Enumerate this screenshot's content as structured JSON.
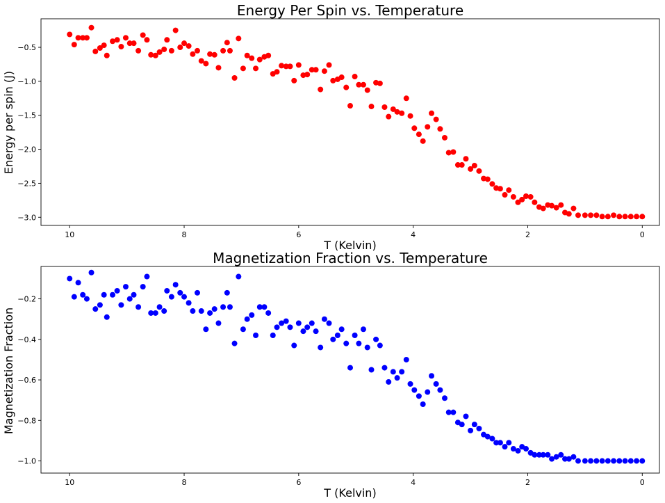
{
  "chart_data": [
    {
      "type": "scatter",
      "title": "Energy Per Spin vs. Temperature",
      "xlabel": "T (Kelvin)",
      "ylabel": "Energy per spin (J)",
      "xlim": [
        10.5,
        -0.3
      ],
      "ylim": [
        -3.12,
        -0.08
      ],
      "xticks": [
        10,
        8,
        6,
        4,
        2,
        0
      ],
      "yticks": [
        -0.5,
        -1.0,
        -1.5,
        -2.0,
        -2.5,
        -3.0
      ],
      "ytick_labels": [
        "−0.5",
        "−1.0",
        "−1.5",
        "−2.0",
        "−2.5",
        "−3.0"
      ],
      "grid": false,
      "color": "#ff0000",
      "series": [
        {
          "points": [
            [
              10.0,
              -0.31
            ],
            [
              9.92,
              -0.46
            ],
            [
              9.85,
              -0.36
            ],
            [
              9.77,
              -0.36
            ],
            [
              9.7,
              -0.36
            ],
            [
              9.62,
              -0.21
            ],
            [
              9.55,
              -0.56
            ],
            [
              9.47,
              -0.51
            ],
            [
              9.4,
              -0.47
            ],
            [
              9.35,
              -0.62
            ],
            [
              9.25,
              -0.41
            ],
            [
              9.17,
              -0.39
            ],
            [
              9.1,
              -0.49
            ],
            [
              9.02,
              -0.36
            ],
            [
              8.95,
              -0.44
            ],
            [
              8.88,
              -0.44
            ],
            [
              8.8,
              -0.55
            ],
            [
              8.72,
              -0.32
            ],
            [
              8.65,
              -0.39
            ],
            [
              8.58,
              -0.61
            ],
            [
              8.5,
              -0.62
            ],
            [
              8.43,
              -0.57
            ],
            [
              8.35,
              -0.53
            ],
            [
              8.3,
              -0.39
            ],
            [
              8.22,
              -0.55
            ],
            [
              8.15,
              -0.25
            ],
            [
              8.07,
              -0.5
            ],
            [
              8.0,
              -0.44
            ],
            [
              7.92,
              -0.48
            ],
            [
              7.85,
              -0.6
            ],
            [
              7.77,
              -0.55
            ],
            [
              7.7,
              -0.7
            ],
            [
              7.62,
              -0.74
            ],
            [
              7.55,
              -0.6
            ],
            [
              7.47,
              -0.61
            ],
            [
              7.4,
              -0.8
            ],
            [
              7.32,
              -0.55
            ],
            [
              7.25,
              -0.43
            ],
            [
              7.2,
              -0.55
            ],
            [
              7.12,
              -0.95
            ],
            [
              7.05,
              -0.37
            ],
            [
              6.97,
              -0.81
            ],
            [
              6.9,
              -0.62
            ],
            [
              6.82,
              -0.66
            ],
            [
              6.75,
              -0.81
            ],
            [
              6.68,
              -0.68
            ],
            [
              6.6,
              -0.64
            ],
            [
              6.53,
              -0.62
            ],
            [
              6.45,
              -0.89
            ],
            [
              6.38,
              -0.86
            ],
            [
              6.3,
              -0.77
            ],
            [
              6.22,
              -0.78
            ],
            [
              6.15,
              -0.78
            ],
            [
              6.08,
              -0.99
            ],
            [
              6.0,
              -0.76
            ],
            [
              5.92,
              -0.91
            ],
            [
              5.85,
              -0.9
            ],
            [
              5.77,
              -0.83
            ],
            [
              5.7,
              -0.83
            ],
            [
              5.62,
              -1.12
            ],
            [
              5.55,
              -0.85
            ],
            [
              5.47,
              -0.76
            ],
            [
              5.4,
              -0.99
            ],
            [
              5.32,
              -0.97
            ],
            [
              5.25,
              -0.94
            ],
            [
              5.17,
              -1.09
            ],
            [
              5.1,
              -1.36
            ],
            [
              5.02,
              -0.93
            ],
            [
              4.95,
              -1.05
            ],
            [
              4.87,
              -1.05
            ],
            [
              4.8,
              -1.13
            ],
            [
              4.73,
              -1.37
            ],
            [
              4.65,
              -1.02
            ],
            [
              4.58,
              -1.03
            ],
            [
              4.5,
              -1.38
            ],
            [
              4.43,
              -1.52
            ],
            [
              4.35,
              -1.41
            ],
            [
              4.28,
              -1.45
            ],
            [
              4.2,
              -1.47
            ],
            [
              4.12,
              -1.25
            ],
            [
              4.05,
              -1.51
            ],
            [
              3.98,
              -1.69
            ],
            [
              3.9,
              -1.78
            ],
            [
              3.83,
              -1.88
            ],
            [
              3.75,
              -1.67
            ],
            [
              3.68,
              -1.47
            ],
            [
              3.6,
              -1.56
            ],
            [
              3.53,
              -1.7
            ],
            [
              3.45,
              -1.83
            ],
            [
              3.38,
              -2.05
            ],
            [
              3.3,
              -2.04
            ],
            [
              3.22,
              -2.23
            ],
            [
              3.15,
              -2.23
            ],
            [
              3.08,
              -2.14
            ],
            [
              3.0,
              -2.29
            ],
            [
              2.93,
              -2.24
            ],
            [
              2.85,
              -2.32
            ],
            [
              2.77,
              -2.43
            ],
            [
              2.7,
              -2.44
            ],
            [
              2.62,
              -2.51
            ],
            [
              2.55,
              -2.57
            ],
            [
              2.48,
              -2.58
            ],
            [
              2.4,
              -2.67
            ],
            [
              2.33,
              -2.6
            ],
            [
              2.25,
              -2.7
            ],
            [
              2.17,
              -2.78
            ],
            [
              2.1,
              -2.74
            ],
            [
              2.03,
              -2.69
            ],
            [
              1.95,
              -2.7
            ],
            [
              1.88,
              -2.78
            ],
            [
              1.8,
              -2.85
            ],
            [
              1.73,
              -2.87
            ],
            [
              1.65,
              -2.82
            ],
            [
              1.58,
              -2.83
            ],
            [
              1.5,
              -2.86
            ],
            [
              1.42,
              -2.82
            ],
            [
              1.35,
              -2.93
            ],
            [
              1.28,
              -2.95
            ],
            [
              1.2,
              -2.87
            ],
            [
              1.12,
              -2.97
            ],
            [
              1.0,
              -2.97
            ],
            [
              0.9,
              -2.97
            ],
            [
              0.8,
              -2.97
            ],
            [
              0.7,
              -2.99
            ],
            [
              0.6,
              -2.99
            ],
            [
              0.5,
              -2.97
            ],
            [
              0.4,
              -2.99
            ],
            [
              0.3,
              -2.99
            ],
            [
              0.2,
              -2.99
            ],
            [
              0.1,
              -2.99
            ],
            [
              0.0,
              -2.99
            ]
          ]
        }
      ]
    },
    {
      "type": "scatter",
      "title": "Magnetization Fraction vs. Temperature",
      "xlabel": "T (Kelvin)",
      "ylabel": "Magnetization Fraction",
      "xlim": [
        10.5,
        -0.3
      ],
      "ylim": [
        -1.06,
        -0.04
      ],
      "xticks": [
        10,
        8,
        6,
        4,
        2,
        0
      ],
      "yticks": [
        -0.2,
        -0.4,
        -0.6,
        -0.8,
        -1.0
      ],
      "ytick_labels": [
        "−0.2",
        "−0.4",
        "−0.6",
        "−0.8",
        "−1.0"
      ],
      "grid": false,
      "color": "#0000ff",
      "series": [
        {
          "points": [
            [
              10.0,
              -0.1
            ],
            [
              9.92,
              -0.19
            ],
            [
              9.85,
              -0.12
            ],
            [
              9.77,
              -0.18
            ],
            [
              9.7,
              -0.2
            ],
            [
              9.62,
              -0.07
            ],
            [
              9.55,
              -0.25
            ],
            [
              9.47,
              -0.23
            ],
            [
              9.4,
              -0.18
            ],
            [
              9.35,
              -0.29
            ],
            [
              9.25,
              -0.18
            ],
            [
              9.17,
              -0.16
            ],
            [
              9.1,
              -0.23
            ],
            [
              9.02,
              -0.14
            ],
            [
              8.95,
              -0.2
            ],
            [
              8.88,
              -0.18
            ],
            [
              8.8,
              -0.24
            ],
            [
              8.72,
              -0.14
            ],
            [
              8.65,
              -0.09
            ],
            [
              8.58,
              -0.27
            ],
            [
              8.5,
              -0.27
            ],
            [
              8.43,
              -0.24
            ],
            [
              8.35,
              -0.26
            ],
            [
              8.3,
              -0.16
            ],
            [
              8.22,
              -0.19
            ],
            [
              8.15,
              -0.13
            ],
            [
              8.07,
              -0.17
            ],
            [
              8.0,
              -0.19
            ],
            [
              7.92,
              -0.22
            ],
            [
              7.85,
              -0.26
            ],
            [
              7.77,
              -0.17
            ],
            [
              7.7,
              -0.26
            ],
            [
              7.62,
              -0.35
            ],
            [
              7.55,
              -0.27
            ],
            [
              7.47,
              -0.25
            ],
            [
              7.4,
              -0.32
            ],
            [
              7.32,
              -0.24
            ],
            [
              7.25,
              -0.17
            ],
            [
              7.2,
              -0.24
            ],
            [
              7.12,
              -0.42
            ],
            [
              7.05,
              -0.09
            ],
            [
              6.97,
              -0.35
            ],
            [
              6.9,
              -0.3
            ],
            [
              6.82,
              -0.28
            ],
            [
              6.75,
              -0.38
            ],
            [
              6.68,
              -0.24
            ],
            [
              6.6,
              -0.24
            ],
            [
              6.53,
              -0.27
            ],
            [
              6.45,
              -0.38
            ],
            [
              6.38,
              -0.34
            ],
            [
              6.3,
              -0.32
            ],
            [
              6.22,
              -0.31
            ],
            [
              6.15,
              -0.34
            ],
            [
              6.08,
              -0.43
            ],
            [
              6.0,
              -0.32
            ],
            [
              5.92,
              -0.36
            ],
            [
              5.85,
              -0.34
            ],
            [
              5.77,
              -0.32
            ],
            [
              5.7,
              -0.36
            ],
            [
              5.62,
              -0.44
            ],
            [
              5.55,
              -0.3
            ],
            [
              5.47,
              -0.32
            ],
            [
              5.4,
              -0.4
            ],
            [
              5.32,
              -0.38
            ],
            [
              5.25,
              -0.35
            ],
            [
              5.17,
              -0.42
            ],
            [
              5.1,
              -0.54
            ],
            [
              5.02,
              -0.38
            ],
            [
              4.95,
              -0.42
            ],
            [
              4.87,
              -0.35
            ],
            [
              4.8,
              -0.44
            ],
            [
              4.73,
              -0.55
            ],
            [
              4.65,
              -0.4
            ],
            [
              4.58,
              -0.43
            ],
            [
              4.5,
              -0.54
            ],
            [
              4.43,
              -0.61
            ],
            [
              4.35,
              -0.56
            ],
            [
              4.28,
              -0.59
            ],
            [
              4.2,
              -0.56
            ],
            [
              4.12,
              -0.5
            ],
            [
              4.05,
              -0.62
            ],
            [
              3.98,
              -0.65
            ],
            [
              3.9,
              -0.68
            ],
            [
              3.83,
              -0.72
            ],
            [
              3.75,
              -0.66
            ],
            [
              3.68,
              -0.58
            ],
            [
              3.6,
              -0.62
            ],
            [
              3.53,
              -0.65
            ],
            [
              3.45,
              -0.69
            ],
            [
              3.38,
              -0.76
            ],
            [
              3.3,
              -0.76
            ],
            [
              3.22,
              -0.81
            ],
            [
              3.15,
              -0.82
            ],
            [
              3.08,
              -0.78
            ],
            [
              3.0,
              -0.85
            ],
            [
              2.93,
              -0.82
            ],
            [
              2.85,
              -0.84
            ],
            [
              2.77,
              -0.87
            ],
            [
              2.7,
              -0.88
            ],
            [
              2.62,
              -0.89
            ],
            [
              2.55,
              -0.91
            ],
            [
              2.48,
              -0.91
            ],
            [
              2.4,
              -0.93
            ],
            [
              2.33,
              -0.91
            ],
            [
              2.25,
              -0.94
            ],
            [
              2.17,
              -0.95
            ],
            [
              2.1,
              -0.93
            ],
            [
              2.03,
              -0.94
            ],
            [
              1.95,
              -0.96
            ],
            [
              1.88,
              -0.97
            ],
            [
              1.8,
              -0.97
            ],
            [
              1.73,
              -0.97
            ],
            [
              1.65,
              -0.97
            ],
            [
              1.58,
              -0.99
            ],
            [
              1.5,
              -0.98
            ],
            [
              1.42,
              -0.97
            ],
            [
              1.35,
              -0.99
            ],
            [
              1.28,
              -0.99
            ],
            [
              1.2,
              -0.98
            ],
            [
              1.12,
              -1.0
            ],
            [
              1.0,
              -1.0
            ],
            [
              0.9,
              -1.0
            ],
            [
              0.8,
              -1.0
            ],
            [
              0.7,
              -1.0
            ],
            [
              0.6,
              -1.0
            ],
            [
              0.5,
              -1.0
            ],
            [
              0.4,
              -1.0
            ],
            [
              0.3,
              -1.0
            ],
            [
              0.2,
              -1.0
            ],
            [
              0.1,
              -1.0
            ],
            [
              0.0,
              -1.0
            ]
          ]
        }
      ]
    }
  ]
}
